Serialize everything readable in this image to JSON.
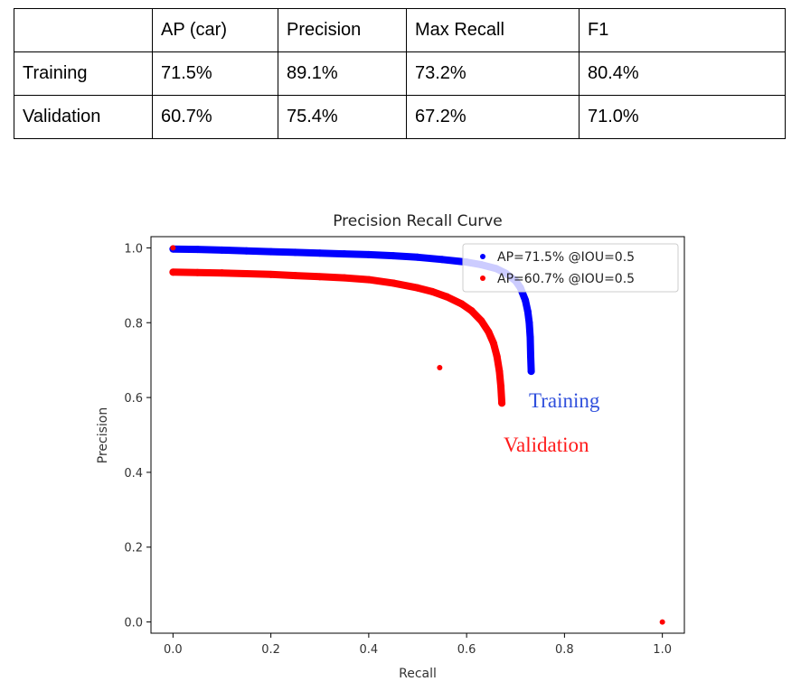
{
  "table": {
    "headers": [
      "",
      "AP (car)",
      "Precision",
      "Max Recall",
      "F1"
    ],
    "rows": [
      {
        "label": "Training",
        "values": [
          "71.5%",
          "89.1%",
          "73.2%",
          "80.4%"
        ]
      },
      {
        "label": "Validation",
        "values": [
          "60.7%",
          "75.4%",
          "67.2%",
          "71.0%"
        ]
      }
    ]
  },
  "chart_data": {
    "type": "scatter",
    "title": "Precision Recall Curve",
    "xlabel": "Recall",
    "ylabel": "Precision",
    "xlim": [
      -0.045,
      1.045
    ],
    "ylim": [
      -0.03,
      1.03
    ],
    "xticks": [
      "0.0",
      "0.2",
      "0.4",
      "0.6",
      "0.8",
      "1.0"
    ],
    "yticks": [
      "0.0",
      "0.2",
      "0.4",
      "0.6",
      "0.8",
      "1.0"
    ],
    "legend_position": "top-right",
    "series": [
      {
        "name": "AP=71.5% @IOU=0.5",
        "color": "#0000ff",
        "annotation": "Training",
        "annotation_color": "#2f4fdc",
        "recall": [
          0.0,
          0.05,
          0.1,
          0.15,
          0.2,
          0.25,
          0.3,
          0.35,
          0.4,
          0.45,
          0.5,
          0.55,
          0.6,
          0.63,
          0.66,
          0.68,
          0.7,
          0.71,
          0.72,
          0.725,
          0.728,
          0.73,
          0.731,
          0.732
        ],
        "precision": [
          0.997,
          0.996,
          0.994,
          0.992,
          0.99,
          0.988,
          0.986,
          0.984,
          0.982,
          0.979,
          0.975,
          0.969,
          0.962,
          0.955,
          0.945,
          0.932,
          0.912,
          0.893,
          0.86,
          0.83,
          0.8,
          0.76,
          0.71,
          0.67
        ]
      },
      {
        "name": "AP=60.7% @IOU=0.5",
        "color": "#ff0000",
        "annotation": "Validation",
        "annotation_color": "#ff1a1a",
        "recall": [
          0.0,
          0.05,
          0.1,
          0.15,
          0.2,
          0.25,
          0.3,
          0.35,
          0.4,
          0.45,
          0.5,
          0.53,
          0.56,
          0.59,
          0.61,
          0.63,
          0.645,
          0.655,
          0.662,
          0.667,
          0.67,
          0.672
        ],
        "precision": [
          0.935,
          0.934,
          0.933,
          0.931,
          0.929,
          0.926,
          0.923,
          0.92,
          0.915,
          0.906,
          0.893,
          0.883,
          0.869,
          0.85,
          0.832,
          0.805,
          0.775,
          0.745,
          0.71,
          0.67,
          0.63,
          0.585
        ]
      }
    ],
    "outliers": [
      {
        "recall": 0.0,
        "precision": 1.0,
        "color": "#ff0000"
      },
      {
        "recall": 0.545,
        "precision": 0.68,
        "color": "#ff0000"
      },
      {
        "recall": 1.0,
        "precision": 0.0,
        "color": "#ff0000"
      }
    ]
  }
}
